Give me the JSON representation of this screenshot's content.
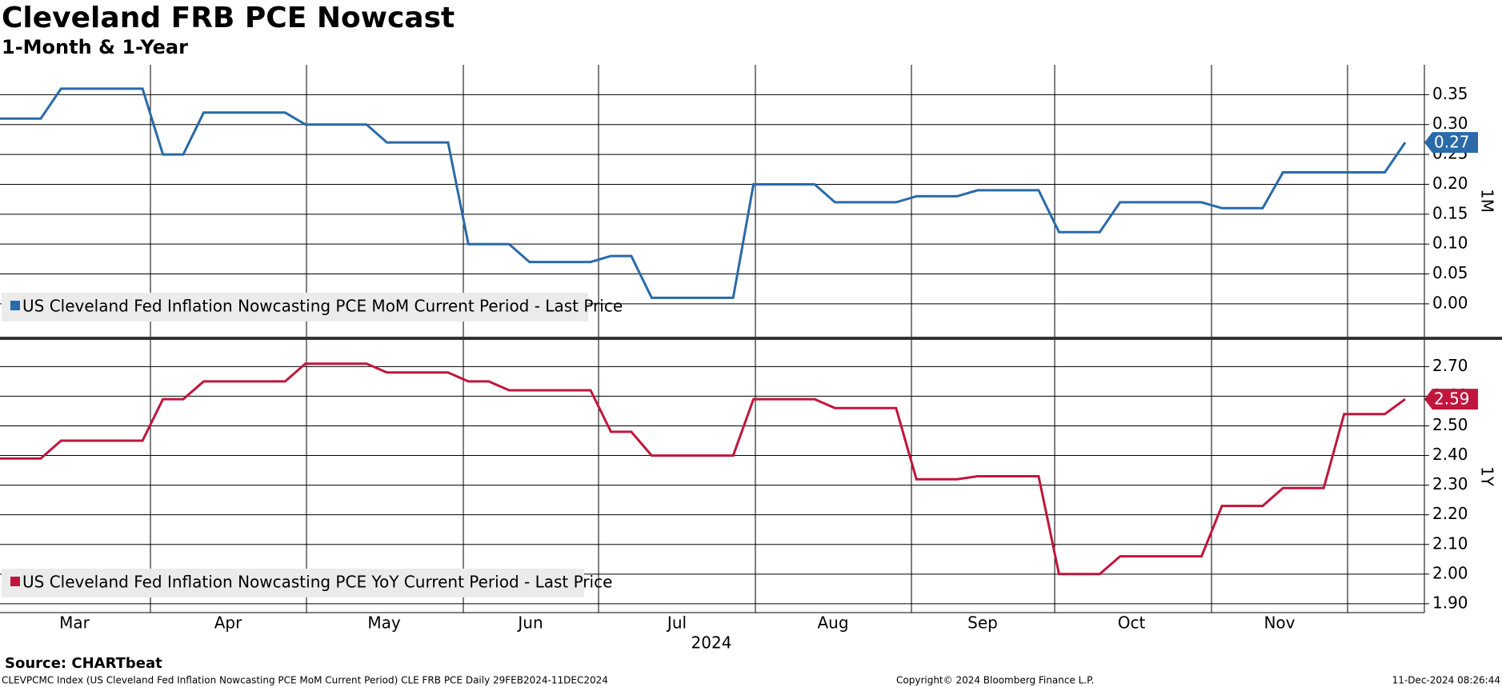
{
  "title": "Cleveland FRB PCE Nowcast",
  "subtitle": "1-Month & 1-Year",
  "source": "Source: CHARTbeat",
  "footer_left": "CLEVPCMC Index (US Cleveland Fed Inflation Nowcasting PCE MoM Current Period) CLE FRB PCE  Daily 29FEB2024-11DEC2024",
  "footer_center": "Copyright© 2024 Bloomberg Finance L.P.",
  "footer_right": "11-Dec-2024 08:26:44",
  "chart_data": [
    {
      "type": "line",
      "axis_label": "1M",
      "ylim": [
        -0.055,
        0.4
      ],
      "yticks": [
        {
          "value": 0,
          "label": "0.00"
        },
        {
          "value": 0.05,
          "label": "0.05"
        },
        {
          "value": 0.1,
          "label": "0.10"
        },
        {
          "value": 0.15,
          "label": "0.15"
        },
        {
          "value": 0.2,
          "label": "0.20"
        },
        {
          "value": 0.25,
          "label": "0.25"
        },
        {
          "value": 0.3,
          "label": "0.30"
        },
        {
          "value": 0.35,
          "label": "0.35"
        }
      ],
      "series": [
        {
          "name": "US Cleveland Fed Inflation Nowcasting PCE MoM Current Period - Last Price",
          "color": "#2a6aa8",
          "values": [
            0.31,
            0.31,
            0.31,
            0.36,
            0.36,
            0.36,
            0.36,
            0.36,
            0.25,
            0.25,
            0.32,
            0.32,
            0.32,
            0.32,
            0.32,
            0.3,
            0.3,
            0.3,
            0.3,
            0.27,
            0.27,
            0.27,
            0.27,
            0.1,
            0.1,
            0.1,
            0.07,
            0.07,
            0.07,
            0.07,
            0.08,
            0.08,
            0.01,
            0.01,
            0.01,
            0.01,
            0.01,
            0.2,
            0.2,
            0.2,
            0.2,
            0.17,
            0.17,
            0.17,
            0.17,
            0.18,
            0.18,
            0.18,
            0.19,
            0.19,
            0.19,
            0.19,
            0.12,
            0.12,
            0.12,
            0.17,
            0.17,
            0.17,
            0.17,
            0.17,
            0.16,
            0.16,
            0.16,
            0.22,
            0.22,
            0.22,
            0.22,
            0.22,
            0.22,
            0.27
          ]
        }
      ]
    },
    {
      "type": "line",
      "axis_label": "1Y",
      "ylim": [
        1.87,
        2.79
      ],
      "yticks": [
        {
          "value": 1.9,
          "label": "1.90"
        },
        {
          "value": 2,
          "label": "2.00"
        },
        {
          "value": 2.1,
          "label": "2.10"
        },
        {
          "value": 2.2,
          "label": "2.20"
        },
        {
          "value": 2.3,
          "label": "2.30"
        },
        {
          "value": 2.4,
          "label": "2.40"
        },
        {
          "value": 2.5,
          "label": "2.50"
        },
        {
          "value": 2.6,
          "label": "2.60"
        },
        {
          "value": 2.7,
          "label": "2.70"
        }
      ],
      "month_labels": [
        "Mar",
        "Apr",
        "May",
        "Jun",
        "Jul",
        "Aug",
        "Sep",
        "Oct",
        "Nov"
      ],
      "year_label": "2024",
      "series": [
        {
          "name": "US Cleveland Fed Inflation Nowcasting PCE YoY Current Period - Last Price",
          "color": "#c0163c",
          "values": [
            2.39,
            2.39,
            2.39,
            2.45,
            2.45,
            2.45,
            2.45,
            2.45,
            2.59,
            2.59,
            2.65,
            2.65,
            2.65,
            2.65,
            2.65,
            2.71,
            2.71,
            2.71,
            2.71,
            2.68,
            2.68,
            2.68,
            2.68,
            2.65,
            2.65,
            2.62,
            2.62,
            2.62,
            2.62,
            2.62,
            2.48,
            2.48,
            2.4,
            2.4,
            2.4,
            2.4,
            2.4,
            2.59,
            2.59,
            2.59,
            2.59,
            2.56,
            2.56,
            2.56,
            2.56,
            2.32,
            2.32,
            2.32,
            2.33,
            2.33,
            2.33,
            2.33,
            2.0,
            2.0,
            2.0,
            2.06,
            2.06,
            2.06,
            2.06,
            2.06,
            2.23,
            2.23,
            2.23,
            2.29,
            2.29,
            2.29,
            2.54,
            2.54,
            2.54,
            2.59
          ]
        }
      ]
    }
  ]
}
